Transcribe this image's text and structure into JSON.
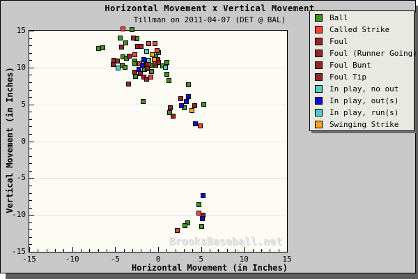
{
  "header": {
    "title": "Horizontal Movement x Vertical Movement",
    "subtitle": "Tillman on 2011-04-07 (DET @ BAL)"
  },
  "chart_data": {
    "type": "scatter",
    "title": "Horizontal Movement x Vertical Movement",
    "subtitle": "Tillman on 2011-04-07 (DET @ BAL)",
    "xlabel": "Horizontal Movement (in Inches)",
    "ylabel": "Vertical Movement (in Inches)",
    "xlim": [
      -15,
      15
    ],
    "ylim": [
      -15,
      15
    ],
    "x_ticks_major": [
      -15,
      -10,
      -5,
      0,
      5,
      10,
      15
    ],
    "y_ticks_major": [
      15,
      10,
      5,
      0,
      -5,
      -10,
      -15
    ],
    "minor_tick_step": 1,
    "gridlines_y": [
      10,
      5,
      0,
      -5,
      -10
    ],
    "grid_vertical": false,
    "legend_position": "upper-right-outside",
    "watermark": "BrooksBaseball.net",
    "marker": "square",
    "series": [
      {
        "name": "Ball",
        "color": "#3E9318",
        "points": [
          [
            -3.1,
            15.2
          ],
          [
            -4.5,
            14.1
          ],
          [
            -2.5,
            14.0
          ],
          [
            -3.8,
            13.4
          ],
          [
            -6.5,
            12.7
          ],
          [
            -7.0,
            12.6
          ],
          [
            0.0,
            12.1
          ],
          [
            -4.1,
            11.5
          ],
          [
            -0.3,
            11.5
          ],
          [
            -3.7,
            11.3
          ],
          [
            -2.8,
            10.9
          ],
          [
            1.0,
            10.7
          ],
          [
            -2.8,
            10.6
          ],
          [
            -4.2,
            10.4
          ],
          [
            -0.9,
            10.4
          ],
          [
            -0.3,
            10.4
          ],
          [
            0.5,
            10.3
          ],
          [
            -3.9,
            10.1
          ],
          [
            -1.6,
            9.8
          ],
          [
            -0.8,
            9.5
          ],
          [
            1.0,
            9.1
          ],
          [
            -2.7,
            8.9
          ],
          [
            1.2,
            8.3
          ],
          [
            3.5,
            7.7
          ],
          [
            -1.8,
            5.4
          ],
          [
            5.3,
            5.1
          ],
          [
            3.0,
            4.6
          ],
          [
            1.3,
            3.9
          ],
          [
            4.7,
            -8.6
          ],
          [
            3.4,
            -11.0
          ],
          [
            3.1,
            -11.4
          ],
          [
            5.0,
            -11.5
          ]
        ]
      },
      {
        "name": "Called Strike",
        "color": "#F94136",
        "points": [
          [
            -4.1,
            15.3
          ],
          [
            -1.1,
            13.3
          ],
          [
            -0.4,
            13.3
          ],
          [
            -0.2,
            12.4
          ],
          [
            -2.8,
            11.8
          ],
          [
            -2.2,
            10.6
          ],
          [
            -1.1,
            10.6
          ],
          [
            -0.9,
            8.8
          ],
          [
            4.9,
            2.1
          ],
          [
            4.7,
            -9.7
          ],
          [
            2.2,
            -12.1
          ]
        ]
      },
      {
        "name": "Foul",
        "color": "#992222",
        "points": [
          [
            -2.9,
            14.1
          ],
          [
            -2.4,
            12.9
          ],
          [
            -2.0,
            12.9
          ],
          [
            -4.3,
            12.8
          ],
          [
            -3.4,
            11.6
          ],
          [
            -5.2,
            11.0
          ],
          [
            -4.8,
            10.9
          ],
          [
            -0.1,
            11.1
          ],
          [
            0.0,
            10.7
          ],
          [
            -0.4,
            10.6
          ],
          [
            -5.3,
            10.5
          ],
          [
            -1.5,
            10.5
          ],
          [
            -1.8,
            10.4
          ],
          [
            -1.3,
            9.9
          ],
          [
            -2.8,
            9.4
          ],
          [
            -2.1,
            9.2
          ],
          [
            -1.7,
            8.8
          ],
          [
            -1.4,
            8.5
          ],
          [
            -3.5,
            7.8
          ],
          [
            2.6,
            5.8
          ],
          [
            4.2,
            4.9
          ],
          [
            1.4,
            4.6
          ],
          [
            1.7,
            3.5
          ],
          [
            5.2,
            -10.0
          ]
        ]
      },
      {
        "name": "Foul (Runner Going)",
        "color": "#992222",
        "points": []
      },
      {
        "name": "Foul Bunt",
        "color": "#992222",
        "points": []
      },
      {
        "name": "Foul Tip",
        "color": "#992222",
        "points": []
      },
      {
        "name": "In play, no out",
        "color": "#4CCFC4",
        "points": [
          [
            -1.4,
            12.3
          ],
          [
            -4.7,
            10.0
          ],
          [
            0.8,
            10.1
          ]
        ]
      },
      {
        "name": "In play, out(s)",
        "color": "#0C0CDD",
        "points": [
          [
            -1.7,
            11.1
          ],
          [
            -1.9,
            10.4
          ],
          [
            -2.3,
            9.8
          ],
          [
            3.5,
            6.1
          ],
          [
            3.2,
            5.4
          ],
          [
            2.7,
            4.9
          ],
          [
            4.3,
            2.4
          ],
          [
            5.2,
            -7.3
          ],
          [
            5.1,
            -10.5
          ]
        ]
      },
      {
        "name": "In play, run(s)",
        "color": "#4CCFC4",
        "points": [
          [
            -1.1,
            11.0
          ]
        ]
      },
      {
        "name": "Swinging Strike",
        "color": "#FFA513",
        "points": [
          [
            -0.7,
            11.8
          ],
          [
            -0.5,
            11.1
          ],
          [
            3.9,
            4.2
          ]
        ]
      }
    ]
  },
  "colors": {
    "canvas": "#C8C8C8",
    "plot_background": "#FCFCF5",
    "gridline": "#E4E4DE",
    "legend_background": "#E9E9E4",
    "shadow": "#5d5d5d"
  }
}
